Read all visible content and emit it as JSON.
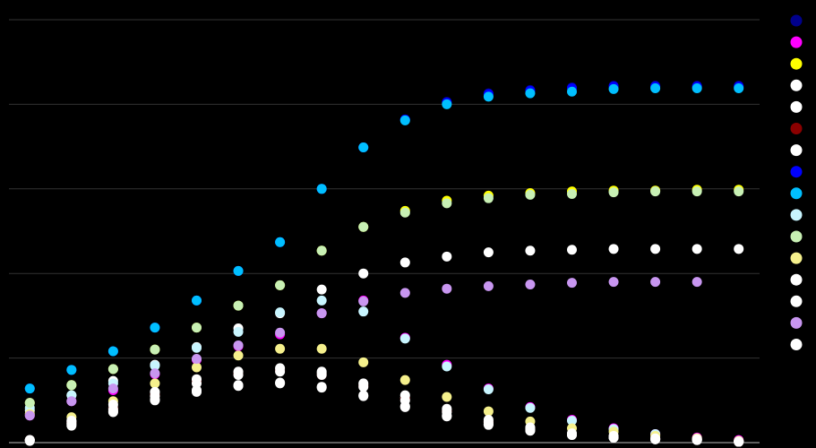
{
  "chart_data": {
    "type": "scatter",
    "x": [
      0,
      1,
      2,
      3,
      4,
      5,
      6,
      7,
      8,
      9,
      10,
      11,
      12,
      13,
      14,
      15,
      16,
      17
    ],
    "xlim": [
      -0.5,
      17.5
    ],
    "ylim": [
      0,
      5
    ],
    "yticks": [
      0,
      1,
      2,
      3,
      4,
      5
    ],
    "grid": true,
    "legend": "right",
    "series": [
      {
        "color": "#00008b",
        "values": [
          0.64,
          0.86,
          1.08,
          1.36,
          1.68,
          2.03,
          2.37,
          3.0,
          3.49,
          3.82,
          4.03,
          4.13,
          4.17,
          4.2,
          4.22,
          4.22,
          4.22,
          4.22
        ]
      },
      {
        "color": "#ff00ff",
        "values": [
          0.32,
          0.49,
          0.62,
          0.81,
          0.98,
          1.14,
          1.28,
          1.53,
          1.68,
          1.24,
          0.92,
          0.64,
          0.42,
          0.27,
          0.17,
          0.1,
          0.06,
          0.03
        ]
      },
      {
        "color": "#ffff00",
        "values": [
          0.47,
          0.68,
          0.87,
          1.1,
          1.36,
          1.62,
          1.86,
          2.27,
          2.55,
          2.74,
          2.86,
          2.92,
          2.95,
          2.97,
          2.98,
          2.98,
          2.99,
          2.99
        ]
      },
      {
        "color": "#ffffff",
        "values": [
          0.38,
          0.56,
          0.73,
          0.92,
          1.13,
          1.35,
          1.53,
          1.81,
          2.0,
          2.13,
          2.2,
          2.25,
          2.27,
          2.28,
          2.29,
          2.29,
          2.29,
          2.29
        ]
      },
      {
        "color": "#ffffff",
        "values": [
          0.03,
          0.22,
          0.41,
          0.57,
          0.73,
          0.82,
          0.86,
          0.82,
          0.68,
          0.53,
          0.38,
          0.25,
          0.17,
          0.1,
          0.07,
          0.05,
          0.04,
          0.01
        ]
      },
      {
        "color": "#8b0000",
        "values": [
          0.03,
          0.24,
          0.4,
          0.56,
          0.72,
          0.81,
          0.85,
          0.8,
          0.67,
          0.52,
          0.37,
          0.24,
          0.16,
          0.1,
          0.07,
          0.05,
          0.04,
          0.01
        ]
      },
      {
        "color": "#ffffff",
        "values": [
          0.03,
          0.25,
          0.37,
          0.51,
          0.62,
          0.68,
          0.71,
          0.66,
          0.55,
          0.42,
          0.32,
          0.22,
          0.15,
          0.1,
          0.06,
          0.04,
          0.03,
          0.01
        ]
      },
      {
        "color": "#0000ff",
        "values": [
          0.64,
          0.86,
          1.08,
          1.36,
          1.68,
          2.03,
          2.37,
          3.0,
          3.49,
          3.82,
          4.02,
          4.12,
          4.16,
          4.19,
          4.21,
          4.21,
          4.21,
          4.21
        ]
      },
      {
        "color": "#00bfff",
        "values": [
          0.64,
          0.86,
          1.08,
          1.36,
          1.68,
          2.03,
          2.37,
          3.0,
          3.49,
          3.81,
          4.0,
          4.09,
          4.13,
          4.15,
          4.18,
          4.19,
          4.19,
          4.19
        ]
      },
      {
        "color": "#c8f5ff",
        "values": [
          0.41,
          0.56,
          0.7,
          0.91,
          1.12,
          1.31,
          1.54,
          1.68,
          1.55,
          1.23,
          0.9,
          0.63,
          0.41,
          0.26,
          0.16,
          0.1,
          0.05,
          0.02
        ]
      },
      {
        "color": "#c8f0b4",
        "values": [
          0.47,
          0.68,
          0.87,
          1.1,
          1.36,
          1.62,
          1.86,
          2.27,
          2.55,
          2.72,
          2.83,
          2.89,
          2.93,
          2.94,
          2.96,
          2.97,
          2.97,
          2.97
        ]
      },
      {
        "color": "#f5f08c",
        "values": [
          0.34,
          0.3,
          0.49,
          0.7,
          0.89,
          1.03,
          1.11,
          1.11,
          0.95,
          0.74,
          0.54,
          0.37,
          0.25,
          0.17,
          0.13,
          0.08,
          0.05,
          0.02
        ]
      },
      {
        "color": "#ffffff",
        "values": [
          0.03,
          0.2,
          0.39,
          0.55,
          0.7,
          0.8,
          0.84,
          0.8,
          0.66,
          0.5,
          0.36,
          0.24,
          0.16,
          0.09,
          0.06,
          0.04,
          0.03,
          0.01
        ]
      },
      {
        "color": "#ffffff",
        "values": [
          0.03,
          0.26,
          0.45,
          0.6,
          0.75,
          0.84,
          0.88,
          0.84,
          0.7,
          0.56,
          0.4,
          0.27,
          0.18,
          0.11,
          0.08,
          0.05,
          0.04,
          0.01
        ]
      },
      {
        "color": "#c896f0",
        "values": [
          0.32,
          0.49,
          0.64,
          0.82,
          0.99,
          1.15,
          1.3,
          1.53,
          1.67,
          1.77,
          1.82,
          1.85,
          1.87,
          1.89,
          1.9,
          1.9,
          1.9,
          null
        ]
      },
      {
        "color": "#ffffff",
        "values": [
          0.02,
          0.23,
          0.36,
          0.5,
          0.6,
          0.67,
          0.7,
          0.65,
          0.56,
          0.43,
          0.31,
          0.21,
          0.14,
          0.09,
          0.06,
          0.04,
          0.03,
          0.01
        ]
      }
    ]
  }
}
